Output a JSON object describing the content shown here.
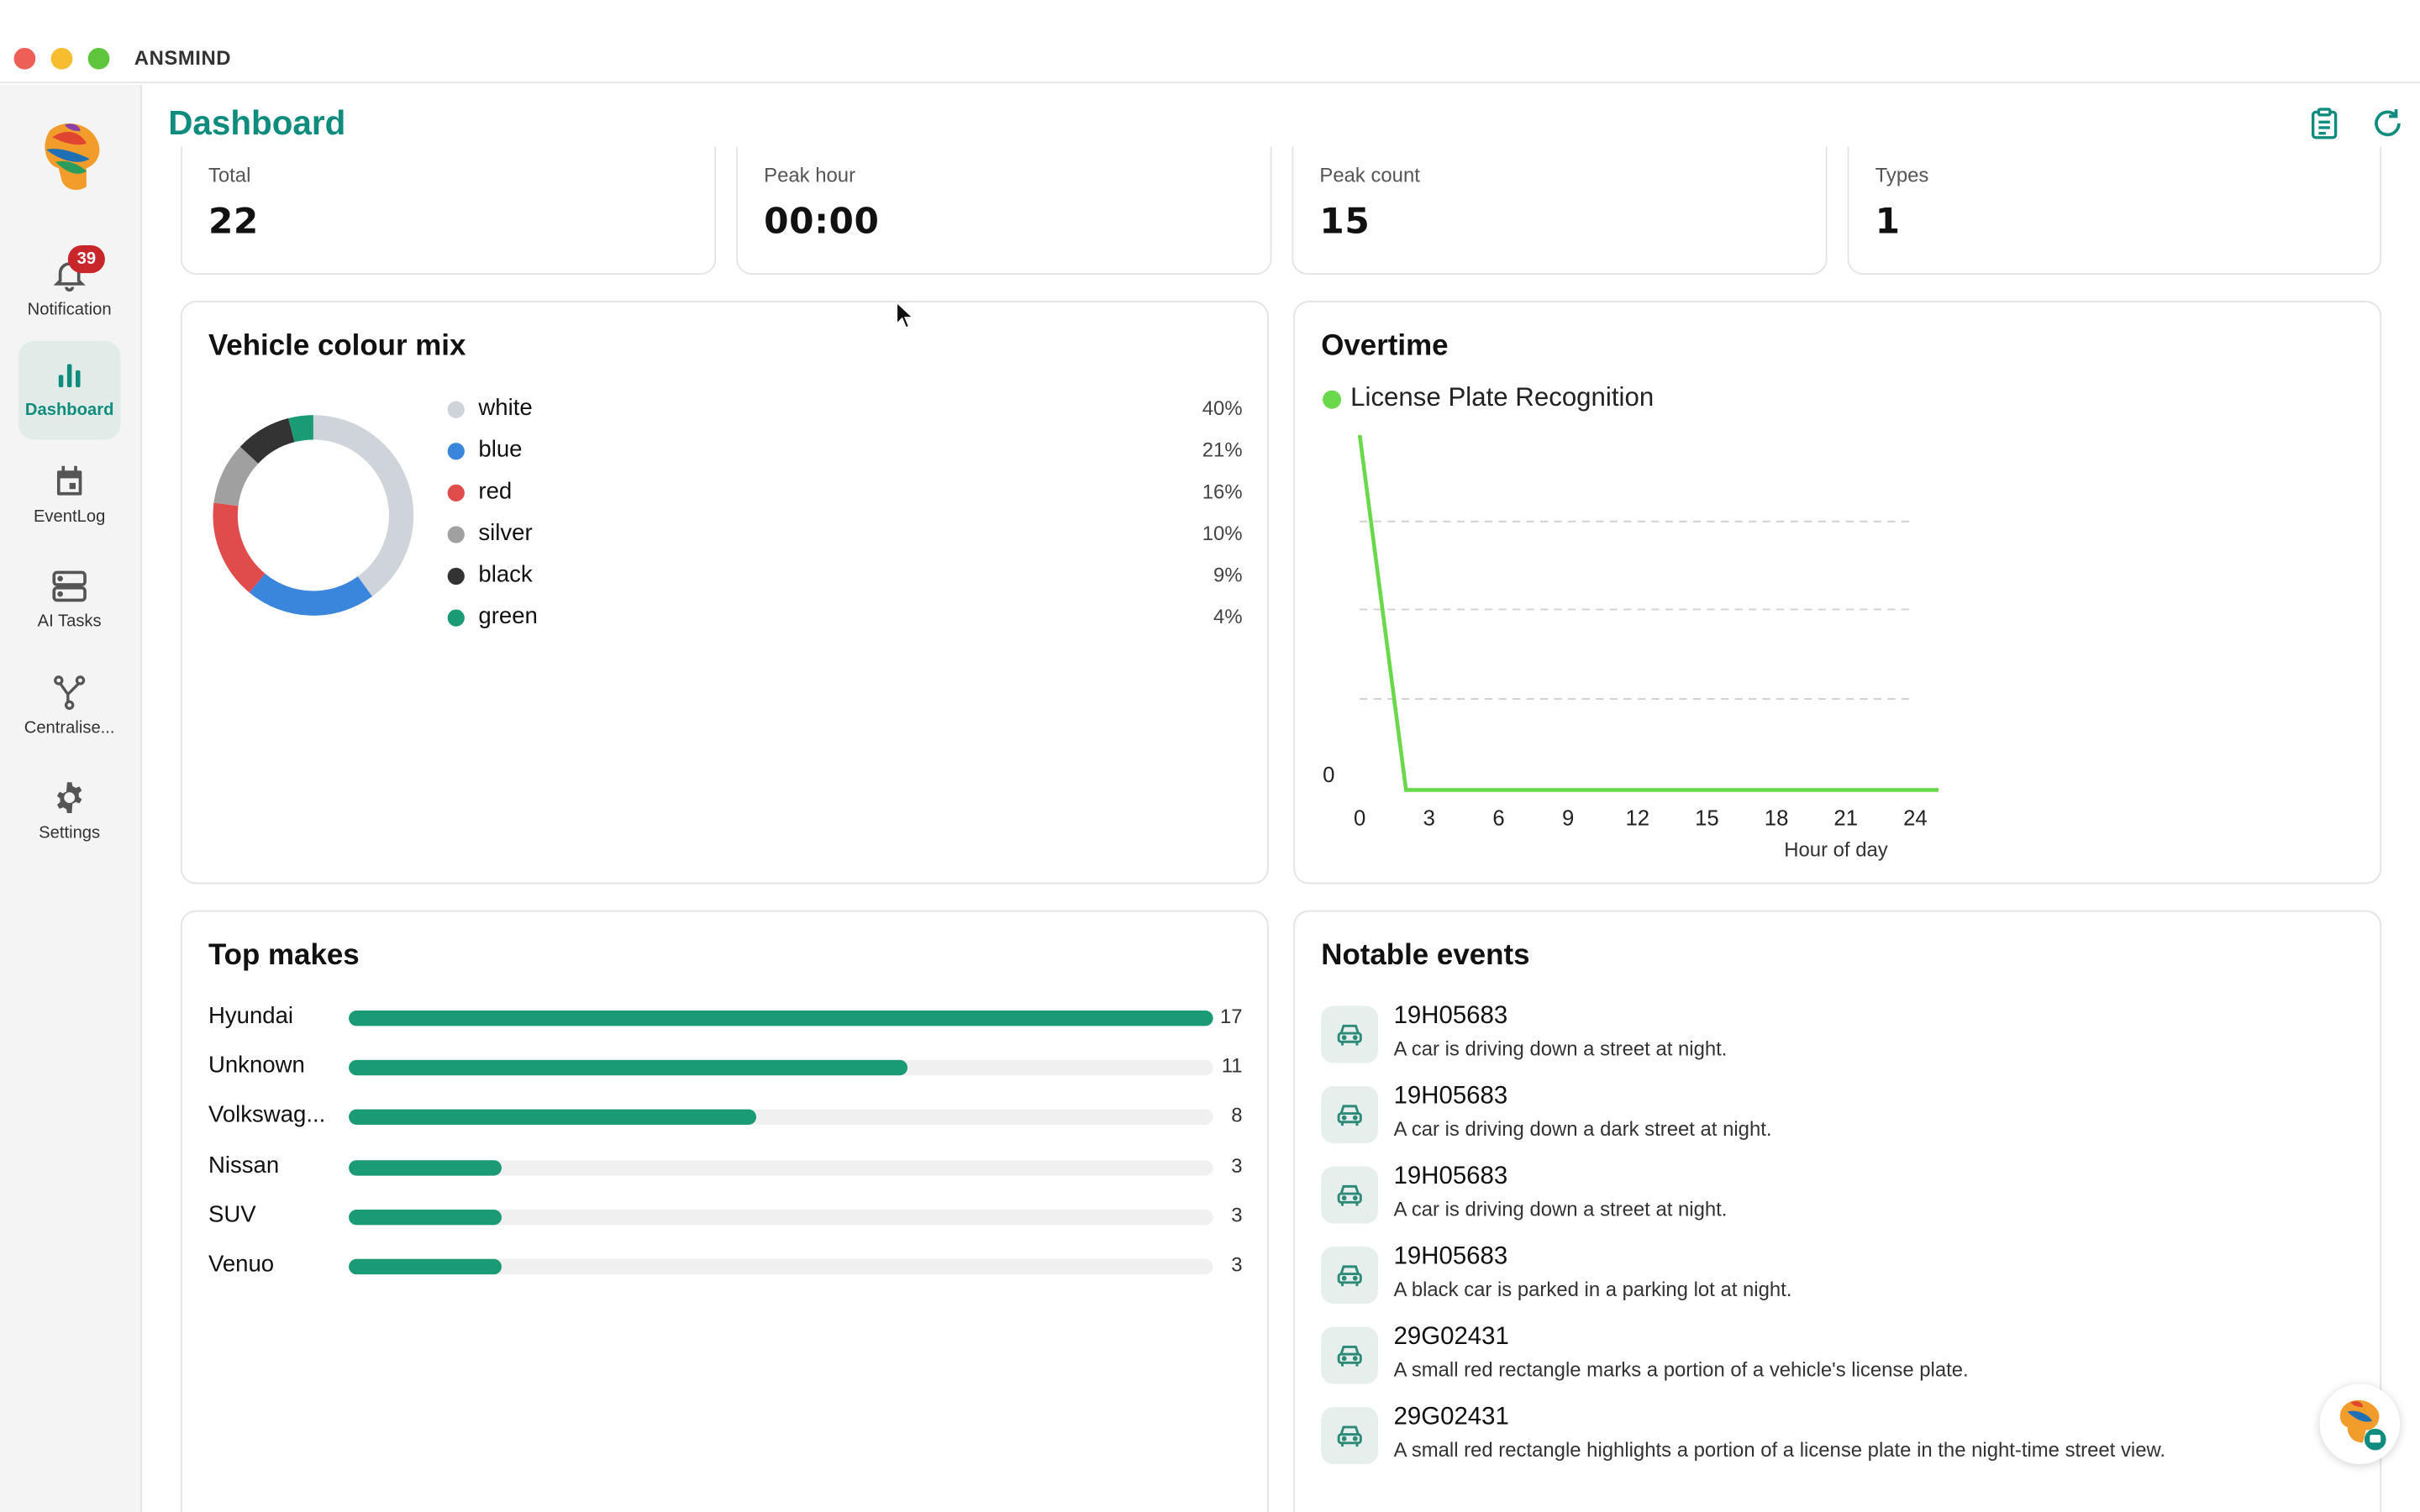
{
  "window": {
    "title": "ANSMIND"
  },
  "sidebar": {
    "items": [
      {
        "label": "Notification",
        "icon": "bell-icon",
        "badge": "39"
      },
      {
        "label": "Dashboard",
        "icon": "bar-chart-icon",
        "active": true
      },
      {
        "label": "EventLog",
        "icon": "calendar-icon"
      },
      {
        "label": "AI Tasks",
        "icon": "server-icon"
      },
      {
        "label": "Centralise...",
        "icon": "network-icon"
      },
      {
        "label": "Settings",
        "icon": "gear-icon"
      }
    ]
  },
  "header": {
    "title": "Dashboard",
    "actions": [
      "clipboard-icon",
      "refresh-icon"
    ]
  },
  "stats": [
    {
      "label": "Total",
      "value": "22"
    },
    {
      "label": "Peak hour",
      "value": "00:00"
    },
    {
      "label": "Peak count",
      "value": "15"
    },
    {
      "label": "Types",
      "value": "1"
    }
  ],
  "colour_mix": {
    "title": "Vehicle colour mix",
    "items": [
      {
        "name": "white",
        "pct": "40%",
        "value": 40,
        "color": "#cfd4da"
      },
      {
        "name": "blue",
        "pct": "21%",
        "value": 21,
        "color": "#3b86dd"
      },
      {
        "name": "red",
        "pct": "16%",
        "value": 16,
        "color": "#e04b4b"
      },
      {
        "name": "silver",
        "pct": "10%",
        "value": 10,
        "color": "#a0a0a0"
      },
      {
        "name": "black",
        "pct": "9%",
        "value": 9,
        "color": "#333333"
      },
      {
        "name": "green",
        "pct": "4%",
        "value": 4,
        "color": "#1a9a75"
      }
    ]
  },
  "overtime": {
    "title": "Overtime",
    "series_label": "License Plate Recognition",
    "series_color": "#6ad84b",
    "y_tick_label": "0",
    "x_ticks": [
      "0",
      "3",
      "6",
      "9",
      "12",
      "15",
      "18",
      "21",
      "24"
    ],
    "xlabel": "Hour of day"
  },
  "top_makes": {
    "title": "Top makes",
    "items": [
      {
        "name": "Hyundai",
        "count": "17",
        "value": 17
      },
      {
        "name": "Unknown",
        "count": "11",
        "value": 11
      },
      {
        "name": "Volkswag...",
        "count": "8",
        "value": 8
      },
      {
        "name": "Nissan",
        "count": "3",
        "value": 3
      },
      {
        "name": "SUV",
        "count": "3",
        "value": 3
      },
      {
        "name": "Venuo",
        "count": "3",
        "value": 3
      }
    ]
  },
  "events": {
    "title": "Notable events",
    "items": [
      {
        "plate": "19H05683",
        "desc": "A car is driving down a street at night."
      },
      {
        "plate": "19H05683",
        "desc": "A car is driving down a dark street at night."
      },
      {
        "plate": "19H05683",
        "desc": "A car is driving down a street at night."
      },
      {
        "plate": "19H05683",
        "desc": "A black car is parked in a parking lot at night."
      },
      {
        "plate": "29G02431",
        "desc": "A small red rectangle marks a portion of a vehicle's license plate."
      },
      {
        "plate": "29G02431",
        "desc": "A small red rectangle highlights a portion of a license plate in the night-time street view."
      }
    ]
  },
  "chart_data": [
    {
      "type": "pie",
      "title": "Vehicle colour mix",
      "categories": [
        "white",
        "blue",
        "red",
        "silver",
        "black",
        "green"
      ],
      "values": [
        40,
        21,
        16,
        10,
        9,
        4
      ]
    },
    {
      "type": "line",
      "title": "Overtime",
      "xlabel": "Hour of day",
      "ylabel": "",
      "xlim": [
        0,
        24
      ],
      "series": [
        {
          "name": "License Plate Recognition",
          "x": [
            0,
            2,
            25
          ],
          "y": [
            15,
            0,
            0
          ]
        }
      ]
    },
    {
      "type": "bar",
      "title": "Top makes",
      "categories": [
        "Hyundai",
        "Unknown",
        "Volkswag...",
        "Nissan",
        "SUV",
        "Venuo"
      ],
      "values": [
        17,
        11,
        8,
        3,
        3,
        3
      ]
    }
  ]
}
